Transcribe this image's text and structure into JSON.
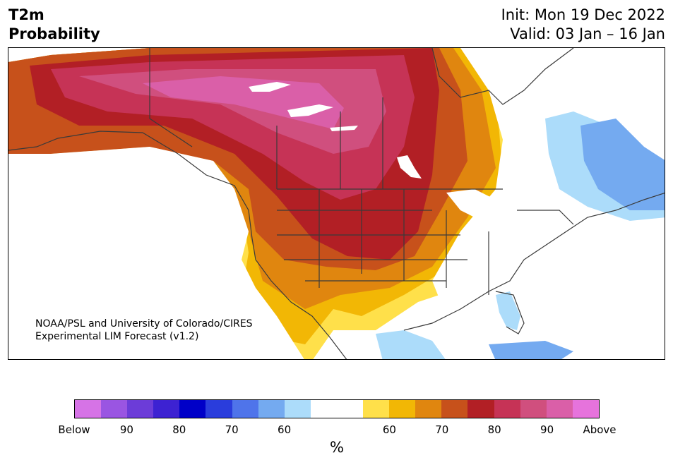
{
  "header": {
    "variable": "T2m",
    "product": "Probability",
    "init": "Init: Mon 19 Dec 2022",
    "valid": "Valid: 03 Jan – 16 Jan"
  },
  "map": {
    "credit_line1": "NOAA/PSL and University of Colorado/CIRES",
    "credit_line2": "Experimental LIM Forecast (v1.2)"
  },
  "colorbar": {
    "unit_label": "%",
    "colors": [
      "#d673e6",
      "#9a55e2",
      "#6c3cd8",
      "#3d22d2",
      "#0000c8",
      "#2a3ddc",
      "#4f74ea",
      "#74aaf0",
      "#acdcfa",
      "#ffffff",
      "#ffffff",
      "#ffe04a",
      "#f2b705",
      "#e0860f",
      "#c7511b",
      "#b21f25",
      "#c63356",
      "#d04f7e",
      "#da5fa8",
      "#e673dc"
    ],
    "ticks": [
      "Below",
      "90",
      "80",
      "70",
      "60",
      "60",
      "70",
      "80",
      "90",
      "Above"
    ]
  }
}
